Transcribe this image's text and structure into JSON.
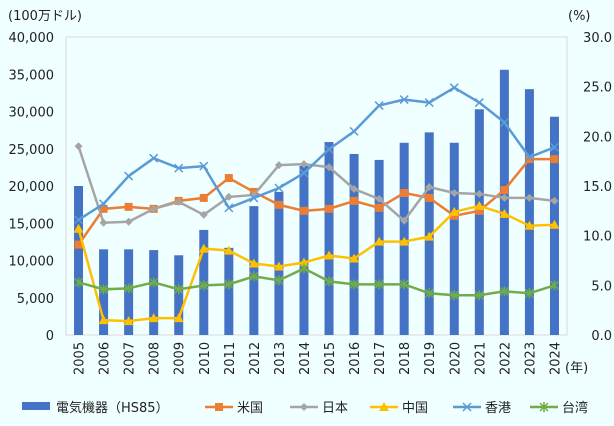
{
  "chart_data": {
    "type": "bar+line",
    "left_unit": "(100万ドル)",
    "right_unit": "(%)",
    "x_unit": "(年)",
    "categories": [
      "2005",
      "2006",
      "2007",
      "2008",
      "2009",
      "2010",
      "2011",
      "2012",
      "2013",
      "2014",
      "2015",
      "2016",
      "2017",
      "2018",
      "2019",
      "2020",
      "2021",
      "2022",
      "2023",
      "2024"
    ],
    "left_axis": {
      "min": 0,
      "max": 40000,
      "ticks": [
        "0",
        "5,000",
        "10,000",
        "15,000",
        "20,000",
        "25,000",
        "30,000",
        "35,000",
        "40,000"
      ]
    },
    "right_axis": {
      "min": 0,
      "max": 30,
      "ticks": [
        "0.0",
        "5.0",
        "10.0",
        "15.0",
        "20.0",
        "25.0",
        "30.0"
      ]
    },
    "bar_series": {
      "name": "電気機器（HS85）",
      "color": "#4472c4",
      "axis": "left",
      "values": [
        20000,
        11500,
        11500,
        11400,
        10700,
        14100,
        11700,
        17300,
        19200,
        22700,
        25900,
        24300,
        23500,
        25800,
        27200,
        25800,
        30300,
        35600,
        33000,
        29300
      ]
    },
    "line_series": [
      {
        "name": "米国",
        "color": "#ed7d31",
        "marker": "square",
        "axis": "right",
        "values": [
          9.1,
          12.7,
          12.9,
          12.7,
          13.5,
          13.8,
          15.8,
          14.4,
          13.1,
          12.5,
          12.7,
          13.5,
          12.8,
          14.3,
          13.8,
          12.0,
          12.5,
          14.6,
          17.7,
          17.7
        ]
      },
      {
        "name": "日本",
        "color": "#a5a5a5",
        "marker": "diamond",
        "axis": "right",
        "values": [
          19.0,
          11.3,
          11.4,
          12.7,
          13.4,
          12.1,
          13.9,
          14.1,
          17.1,
          17.2,
          16.9,
          14.7,
          13.7,
          11.5,
          14.9,
          14.3,
          14.2,
          13.8,
          13.8,
          13.5
        ]
      },
      {
        "name": "中国",
        "color": "#ffc000",
        "marker": "triangle",
        "axis": "right",
        "values": [
          10.7,
          1.5,
          1.4,
          1.7,
          1.7,
          8.7,
          8.5,
          7.2,
          6.9,
          7.3,
          8.0,
          7.7,
          9.4,
          9.4,
          9.9,
          12.4,
          13.0,
          12.2,
          11.0,
          11.1
        ]
      },
      {
        "name": "香港",
        "color": "#5b9bd5",
        "marker": "x",
        "axis": "right",
        "values": [
          11.6,
          13.2,
          16.0,
          17.8,
          16.8,
          17.0,
          12.8,
          13.8,
          14.8,
          16.3,
          18.7,
          20.5,
          23.1,
          23.7,
          23.4,
          24.9,
          23.4,
          21.4,
          17.9,
          18.9
        ]
      },
      {
        "name": "台湾",
        "color": "#70ad47",
        "marker": "star",
        "axis": "right",
        "values": [
          5.3,
          4.6,
          4.7,
          5.3,
          4.6,
          5.0,
          5.1,
          5.9,
          5.5,
          6.7,
          5.4,
          5.1,
          5.1,
          5.1,
          4.2,
          4.0,
          4.0,
          4.4,
          4.2,
          5.0
        ]
      }
    ],
    "grid": false,
    "legend_placement": "bottom"
  }
}
